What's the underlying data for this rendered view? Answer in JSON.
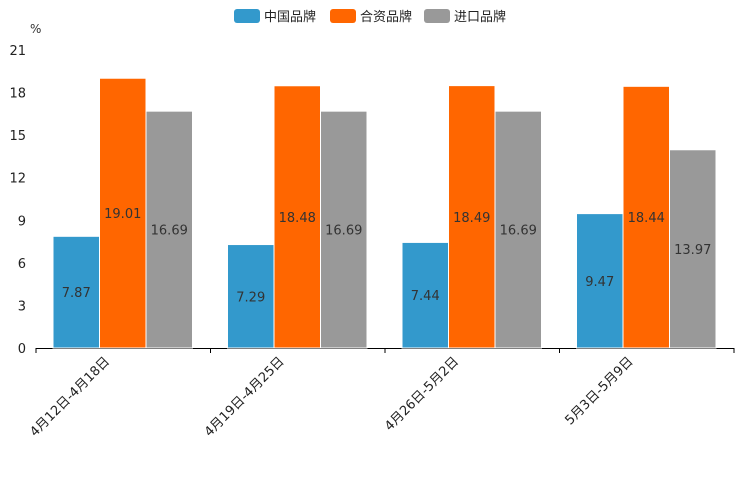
{
  "chart_data": {
    "type": "bar",
    "title": "",
    "unit": "%",
    "categories": [
      "4月12日-4月18日",
      "4月19日-4月25日",
      "4月26日-5月2日",
      "5月3日-5月9日"
    ],
    "series": [
      {
        "name": "中国品牌",
        "color": "#3399cc",
        "values": [
          7.87,
          7.29,
          7.44,
          9.47
        ]
      },
      {
        "name": "合资品牌",
        "color": "#ff6600",
        "values": [
          19.01,
          18.48,
          18.49,
          18.44
        ]
      },
      {
        "name": "进口品牌",
        "color": "#999999",
        "values": [
          16.69,
          16.69,
          16.69,
          13.97
        ]
      }
    ],
    "ylim": [
      0,
      21
    ],
    "yticks": [
      0,
      3,
      6,
      9,
      12,
      15,
      18,
      21
    ],
    "legend_position": "top-center",
    "grid": false
  }
}
